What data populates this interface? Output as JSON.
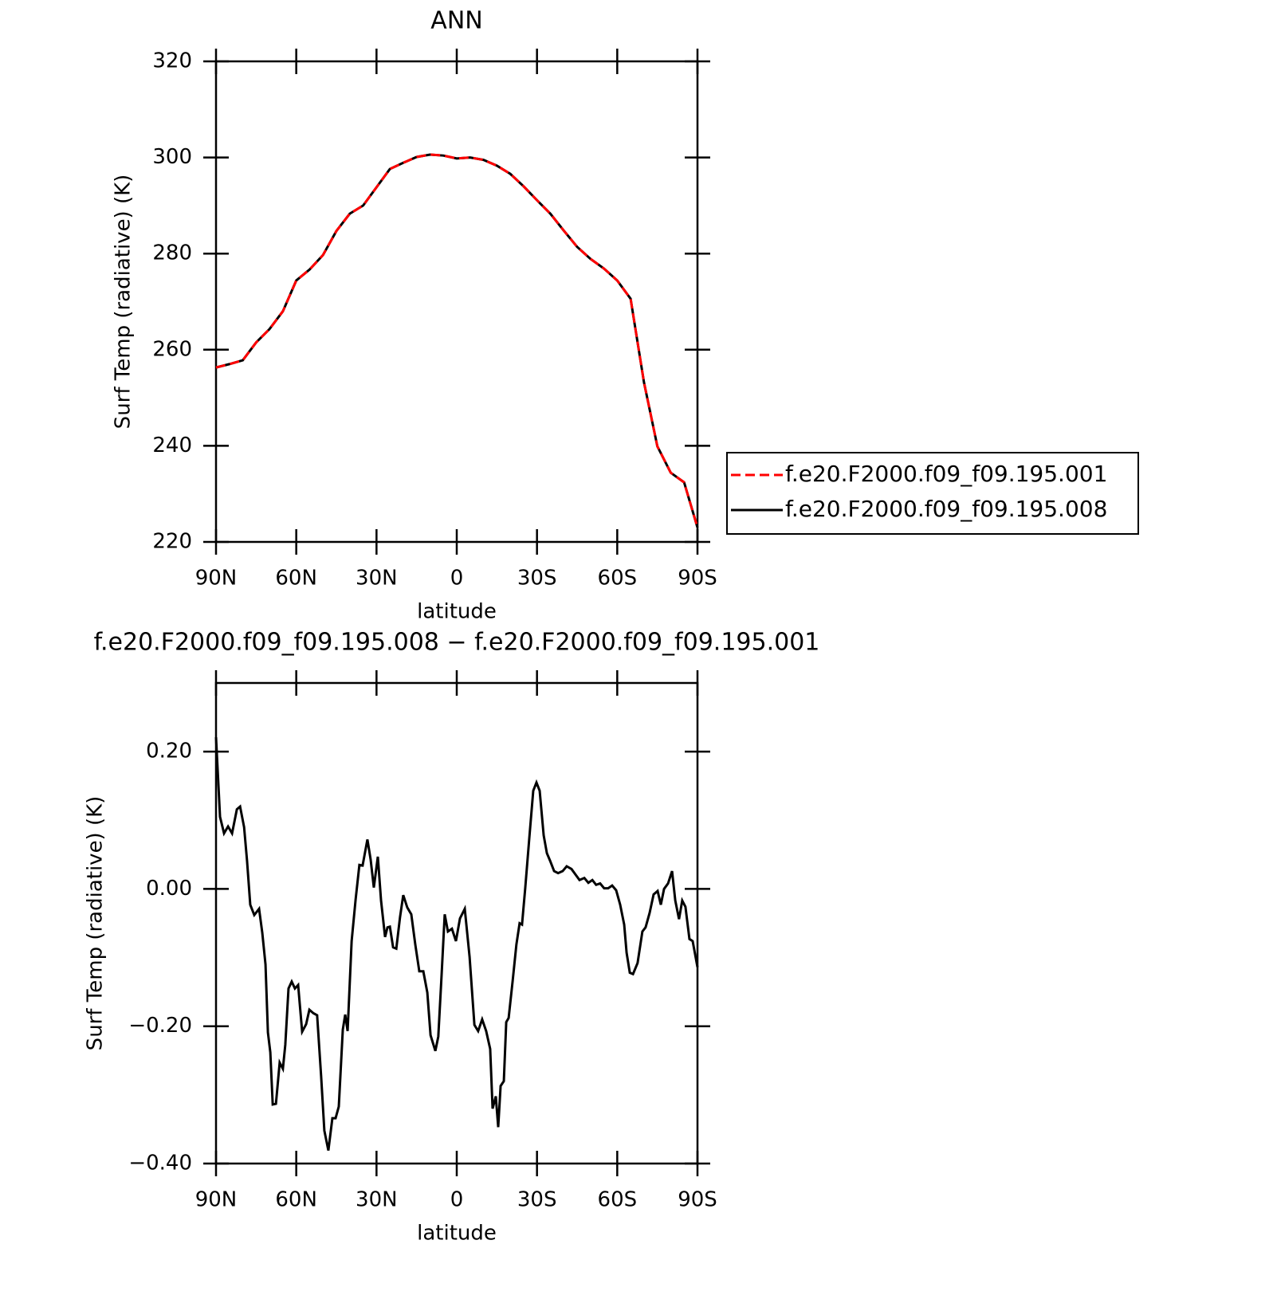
{
  "chart_data": [
    {
      "type": "line",
      "title": "ANN",
      "x_label": "latitude",
      "y_label": "Surf Temp (radiative) (K)",
      "x": [
        90,
        85,
        80,
        75,
        70,
        65,
        60,
        55,
        50,
        45,
        40,
        35,
        30,
        25,
        20,
        15,
        10,
        5,
        0,
        -5,
        -10,
        -15,
        -20,
        -25,
        -30,
        -35,
        -40,
        -45,
        -50,
        -55,
        -60,
        -65,
        -70,
        -75,
        -80,
        -85,
        -90
      ],
      "series": [
        {
          "name": "f.e20.F2000.f09_f09.195.001",
          "color": "#ff0000",
          "linestyle": "dashed",
          "values": [
            256.3,
            257.0,
            257.8,
            261.5,
            264.3,
            268.0,
            274.4,
            276.7,
            279.7,
            284.7,
            288.3,
            290.0,
            293.8,
            297.6,
            298.9,
            300.1,
            300.6,
            300.4,
            299.8,
            300.0,
            299.5,
            298.3,
            296.6,
            294.0,
            291.1,
            288.3,
            284.8,
            281.4,
            278.9,
            276.9,
            274.4,
            270.6,
            253.2,
            239.9,
            234.4,
            232.4,
            223.0
          ]
        },
        {
          "name": "f.e20.F2000.f09_f09.195.008",
          "color": "#000000",
          "linestyle": "solid",
          "values": [
            256.3,
            257.0,
            257.8,
            261.5,
            264.3,
            268.0,
            274.4,
            276.7,
            279.7,
            284.7,
            288.3,
            290.0,
            293.8,
            297.6,
            298.9,
            300.1,
            300.6,
            300.4,
            299.8,
            300.0,
            299.5,
            298.3,
            296.6,
            294.0,
            291.1,
            288.3,
            284.8,
            281.4,
            278.9,
            276.9,
            274.4,
            270.6,
            253.2,
            239.9,
            234.4,
            232.4,
            223.0
          ]
        }
      ],
      "xlim": [
        90,
        -90
      ],
      "xticks": [
        {
          "value": 90,
          "label": "90N"
        },
        {
          "value": 60,
          "label": "60N"
        },
        {
          "value": 30,
          "label": "30N"
        },
        0,
        {
          "value": -30,
          "label": "30S"
        },
        {
          "value": -60,
          "label": "60S"
        },
        {
          "value": -90,
          "label": "90S"
        }
      ],
      "ylim": [
        220,
        320
      ],
      "yticks": [
        220,
        240,
        260,
        280,
        300,
        320
      ],
      "legend": "right"
    },
    {
      "type": "line",
      "title": "f.e20.F2000.f09_f09.195.008 − f.e20.F2000.f09_f09.195.001",
      "x_label": "latitude",
      "y_label": "Surf Temp (radiative) (K)",
      "x": [
        90,
        88.5,
        87,
        85.5,
        84,
        82.2,
        81,
        79.5,
        78.4,
        77.2,
        75.7,
        73.9,
        72.7,
        71.5,
        70.6,
        69.7,
        68.8,
        67.6,
        66.2,
        65,
        64.1,
        62.9,
        61.7,
        60.5,
        59.3,
        57.8,
        56.3,
        55.1,
        53.6,
        52.2,
        50.7,
        49.5,
        48,
        46.5,
        45.3,
        44.1,
        42.6,
        41.7,
        40.8,
        39.3,
        37.8,
        36.4,
        35.2,
        33.4,
        32.2,
        31,
        29.5,
        28.3,
        26.8,
        25.9,
        25,
        23.8,
        22.6,
        21.2,
        20,
        18.5,
        17,
        15.5,
        14,
        12.5,
        11,
        9.8,
        8,
        6.9,
        5.7,
        4.5,
        3.3,
        1.8,
        0.3,
        -1.2,
        -3,
        -4.8,
        -6.6,
        -8,
        -9.5,
        -11,
        -12.5,
        -13.4,
        -14.6,
        -15.5,
        -16.4,
        -17.6,
        -18.5,
        -19.4,
        -20.9,
        -22.3,
        -23.5,
        -24.4,
        -25.6,
        -27.1,
        -28.6,
        -29.8,
        -31,
        -32.5,
        -33.7,
        -34.9,
        -36.4,
        -37.9,
        -39.6,
        -41.1,
        -42.9,
        -44.4,
        -45.9,
        -47.7,
        -49.2,
        -50.7,
        -52.1,
        -53.6,
        -55.1,
        -56.6,
        -58.1,
        -59.6,
        -61.1,
        -62.6,
        -63.5,
        -64.7,
        -65.9,
        -67.6,
        -69.4,
        -70.6,
        -72.1,
        -73.6,
        -75.1,
        -76.3,
        -77.5,
        -79,
        -80.5,
        -81.7,
        -83.1,
        -84.3,
        -85.5,
        -87,
        -88.2,
        -90
      ],
      "values": [
        0.221,
        0.105,
        0.081,
        0.091,
        0.081,
        0.116,
        0.12,
        0.09,
        0.041,
        -0.023,
        -0.038,
        -0.029,
        -0.064,
        -0.11,
        -0.209,
        -0.238,
        -0.314,
        -0.313,
        -0.253,
        -0.262,
        -0.227,
        -0.145,
        -0.135,
        -0.145,
        -0.14,
        -0.208,
        -0.197,
        -0.176,
        -0.181,
        -0.184,
        -0.273,
        -0.352,
        -0.381,
        -0.334,
        -0.334,
        -0.317,
        -0.205,
        -0.183,
        -0.207,
        -0.076,
        -0.015,
        0.035,
        0.034,
        0.072,
        0.043,
        0.002,
        0.047,
        -0.017,
        -0.07,
        -0.056,
        -0.055,
        -0.085,
        -0.087,
        -0.041,
        -0.009,
        -0.027,
        -0.037,
        -0.081,
        -0.12,
        -0.12,
        -0.151,
        -0.213,
        -0.236,
        -0.215,
        -0.128,
        -0.037,
        -0.062,
        -0.058,
        -0.076,
        -0.043,
        -0.029,
        -0.099,
        -0.198,
        -0.207,
        -0.19,
        -0.207,
        -0.233,
        -0.32,
        -0.302,
        -0.347,
        -0.287,
        -0.28,
        -0.194,
        -0.188,
        -0.134,
        -0.081,
        -0.05,
        -0.052,
        0.001,
        0.073,
        0.143,
        0.155,
        0.143,
        0.078,
        0.052,
        0.041,
        0.026,
        0.023,
        0.026,
        0.033,
        0.029,
        0.021,
        0.013,
        0.016,
        0.009,
        0.013,
        0.006,
        0.008,
        0.001,
        0.001,
        0.005,
        -0.002,
        -0.023,
        -0.052,
        -0.093,
        -0.122,
        -0.124,
        -0.108,
        -0.062,
        -0.056,
        -0.035,
        -0.008,
        -0.003,
        -0.023,
        0,
        0.008,
        0.026,
        -0.017,
        -0.044,
        -0.017,
        -0.026,
        -0.073,
        -0.076,
        -0.114
      ],
      "color": "#000000",
      "linestyle": "solid",
      "xlim": [
        90,
        -90
      ],
      "xticks": [
        {
          "value": 90,
          "label": "90N"
        },
        {
          "value": 60,
          "label": "60N"
        },
        {
          "value": 30,
          "label": "30N"
        },
        0,
        {
          "value": -30,
          "label": "30S"
        },
        {
          "value": -60,
          "label": "60S"
        },
        {
          "value": -90,
          "label": "90S"
        }
      ],
      "ylim": [
        -0.4,
        0.3
      ],
      "yticks": [
        {
          "value": -0.4,
          "label": "−0.40"
        },
        {
          "value": -0.2,
          "label": "−0.20"
        },
        {
          "value": 0,
          "label": "0.00"
        },
        {
          "value": 0.2,
          "label": "0.20"
        }
      ]
    }
  ]
}
